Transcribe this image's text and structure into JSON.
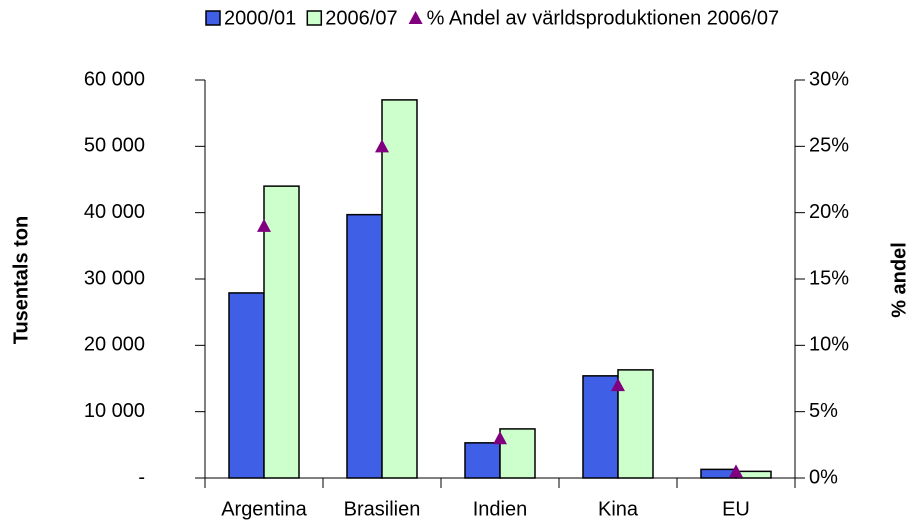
{
  "chart_data": {
    "type": "bar",
    "y_label": "Tusentals ton",
    "y2_label": "% andel",
    "categories": [
      "Argentina",
      "Brasilien",
      "Indien",
      "Kina",
      "EU"
    ],
    "series": [
      {
        "name": "2000/01",
        "color": "#3f5fe6",
        "values": [
          27900,
          39700,
          5300,
          15400,
          1300
        ]
      },
      {
        "name": "2006/07",
        "color": "#ccffcc",
        "values": [
          44000,
          57000,
          7400,
          16300,
          1000
        ]
      },
      {
        "name": "% Andel av världsproduktionen 2006/07",
        "color": "#800080",
        "axis": "y2",
        "marker": "triangle",
        "values": [
          19,
          25,
          3,
          7,
          0.5
        ]
      }
    ],
    "ylim": [
      0,
      60000
    ],
    "yticks": [
      {
        "value": 0,
        "label": "-"
      },
      {
        "value": 10000,
        "label": "10 000"
      },
      {
        "value": 20000,
        "label": "20 000"
      },
      {
        "value": 30000,
        "label": "30 000"
      },
      {
        "value": 40000,
        "label": "40 000"
      },
      {
        "value": 50000,
        "label": "50 000"
      },
      {
        "value": 60000,
        "label": "60 000"
      }
    ],
    "y2lim": [
      0,
      30
    ],
    "y2ticks": [
      {
        "value": 0,
        "label": "0%"
      },
      {
        "value": 5,
        "label": "5%"
      },
      {
        "value": 10,
        "label": "10%"
      },
      {
        "value": 15,
        "label": "15%"
      },
      {
        "value": 20,
        "label": "20%"
      },
      {
        "value": 25,
        "label": "25%"
      },
      {
        "value": 30,
        "label": "30%"
      }
    ],
    "legend": "top"
  }
}
